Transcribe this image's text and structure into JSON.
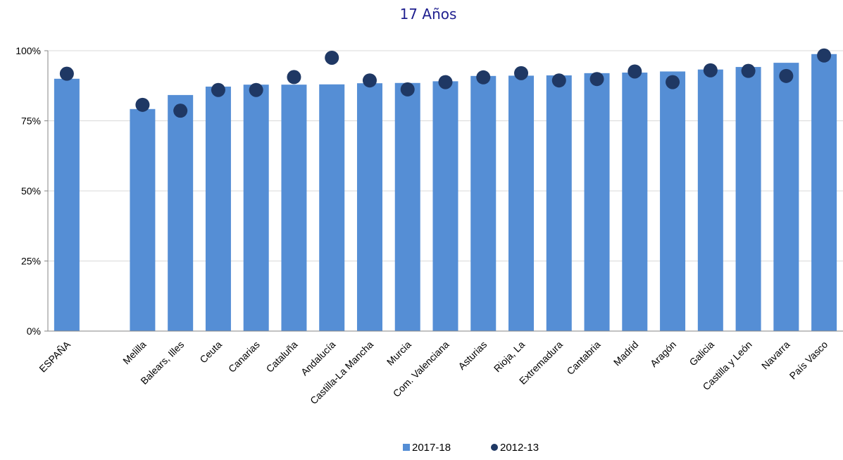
{
  "chart_data": {
    "type": "bar",
    "title": "17 Años",
    "xlabel": "",
    "ylabel": "",
    "categories": [
      "ESPAÑA",
      "",
      "Melilla",
      "Balears, Illes",
      "Ceuta",
      "Canarias",
      "Cataluña",
      "Andalucía",
      "Castilla-La Mancha",
      "Murcia",
      "Com. Valenciana",
      "Asturias",
      "Rioja, La",
      "Extremadura",
      "Cantabria",
      "Madrid",
      "Aragón",
      "Galicia",
      "Castilla y León",
      "Navarra",
      "País Vasco"
    ],
    "series": [
      {
        "name": "2017-18",
        "kind": "bar",
        "values": [
          90.0,
          null,
          79.2,
          84.2,
          87.2,
          87.9,
          87.9,
          88.0,
          88.4,
          88.5,
          89.1,
          91.0,
          91.1,
          91.2,
          92.0,
          92.2,
          92.6,
          93.3,
          94.2,
          95.7,
          98.8
        ]
      },
      {
        "name": "2012-13",
        "kind": "marker",
        "values": [
          91.8,
          null,
          80.7,
          78.6,
          86.0,
          86.0,
          90.6,
          97.5,
          89.4,
          86.2,
          88.8,
          90.5,
          92.0,
          89.4,
          89.9,
          92.6,
          88.8,
          93.0,
          92.8,
          91.0,
          98.3
        ]
      }
    ],
    "ylim": [
      0,
      100
    ],
    "yticks": [
      "0%",
      "25%",
      "50%",
      "75%",
      "100%"
    ],
    "ytick_values": [
      0,
      25,
      50,
      75,
      100
    ],
    "grid": true,
    "legend_position": "bottom",
    "colors": {
      "bar": "#558ed5",
      "marker": "#1f3864",
      "title": "#1f1f8f",
      "grid": "#d9d9d9",
      "axis": "#868686"
    }
  }
}
